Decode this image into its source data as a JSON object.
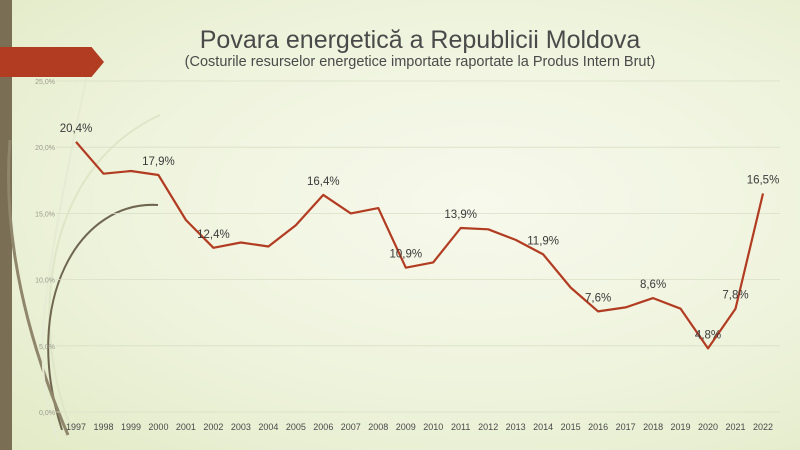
{
  "slide": {
    "title": "Povara energetică a Republicii Moldova",
    "subtitle": "(Costurile resurselor energetice importate raportate la Produs Intern Brut)"
  },
  "colors": {
    "line": "#b23c21",
    "accent_tab": "#b23c21",
    "side_bar": "#7a6e55",
    "grid": "#d9dfc6",
    "text": "#4a4a4a"
  },
  "chart_data": {
    "type": "line",
    "title": "Povara energetică a Republicii Moldova",
    "subtitle": "(Costurile resurselor energetice importate raportate la Produs Intern Brut)",
    "xlabel": "",
    "ylabel": "",
    "ylim": [
      0,
      25
    ],
    "grid": true,
    "legend": "none",
    "y_ticks": [
      "0,0%",
      "5,0%",
      "10,0%",
      "15,0%",
      "20,0%",
      "25,0%"
    ],
    "categories": [
      "1997",
      "1998",
      "1999",
      "2000",
      "2001",
      "2002",
      "2003",
      "2004",
      "2005",
      "2006",
      "2007",
      "2008",
      "2009",
      "2010",
      "2011",
      "2012",
      "2013",
      "2014",
      "2015",
      "2016",
      "2017",
      "2018",
      "2019",
      "2020",
      "2021",
      "2022"
    ],
    "series": [
      {
        "values": [
          20.4,
          18.0,
          18.2,
          17.9,
          14.5,
          12.4,
          12.8,
          12.5,
          14.1,
          16.4,
          15.0,
          15.4,
          10.9,
          11.3,
          13.9,
          13.8,
          13.0,
          11.9,
          9.4,
          7.6,
          7.9,
          8.6,
          7.8,
          4.8,
          7.8,
          16.5
        ],
        "labels": [
          "20,4%",
          "",
          "",
          "17,9%",
          "",
          "12,4%",
          "",
          "",
          "",
          "16,4%",
          "",
          "",
          "10,9%",
          "",
          "13,9%",
          "",
          "",
          "11,9%",
          "",
          "7,6%",
          "",
          "8,6%",
          "",
          "4,8%",
          "7,8%",
          "16,5%"
        ]
      }
    ]
  }
}
